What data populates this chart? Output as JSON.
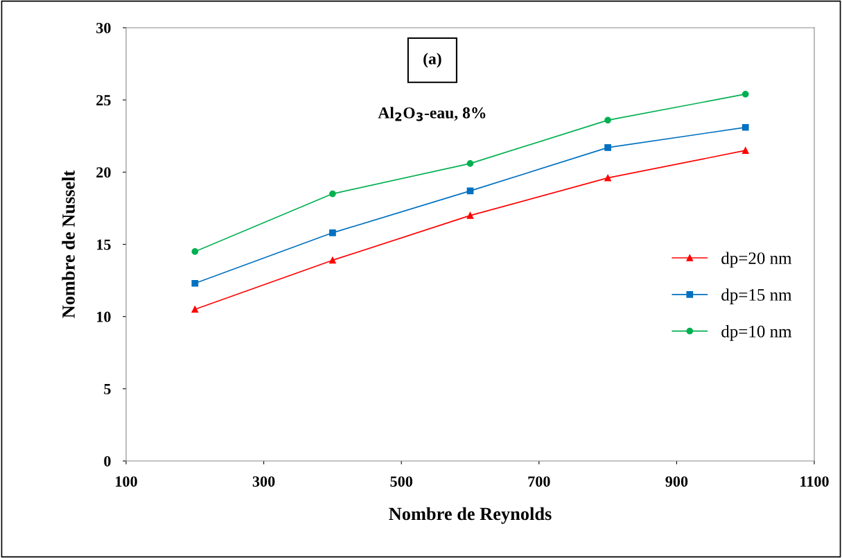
{
  "chart_data": {
    "type": "line",
    "xlabel": "Nombre de Reynolds",
    "ylabel": "Nombre de Nusselt",
    "annotations": [
      "(a)",
      "Al$_{2}$O$_{3}$-eau, 8%"
    ],
    "x": [
      200,
      400,
      600,
      800,
      1000
    ],
    "series": [
      {
        "name": "dp=20 nm",
        "color": "#ff0000",
        "marker": "triangle",
        "values": [
          10.5,
          13.9,
          17.0,
          19.6,
          21.5
        ]
      },
      {
        "name": "dp=15 nm",
        "color": "#0070c0",
        "marker": "square",
        "values": [
          12.3,
          15.8,
          18.7,
          21.7,
          23.1
        ]
      },
      {
        "name": "dp=10 nm",
        "color": "#00b050",
        "marker": "circle",
        "values": [
          14.5,
          18.5,
          20.6,
          23.6,
          25.4
        ]
      }
    ],
    "xlim": [
      100,
      1100
    ],
    "xticks": [
      100,
      300,
      500,
      700,
      900,
      1100
    ],
    "ylim": [
      0,
      30
    ],
    "yticks": [
      0,
      5,
      10,
      15,
      20,
      25,
      30
    ],
    "grid": false,
    "legend": "right",
    "line_style": "solid"
  }
}
